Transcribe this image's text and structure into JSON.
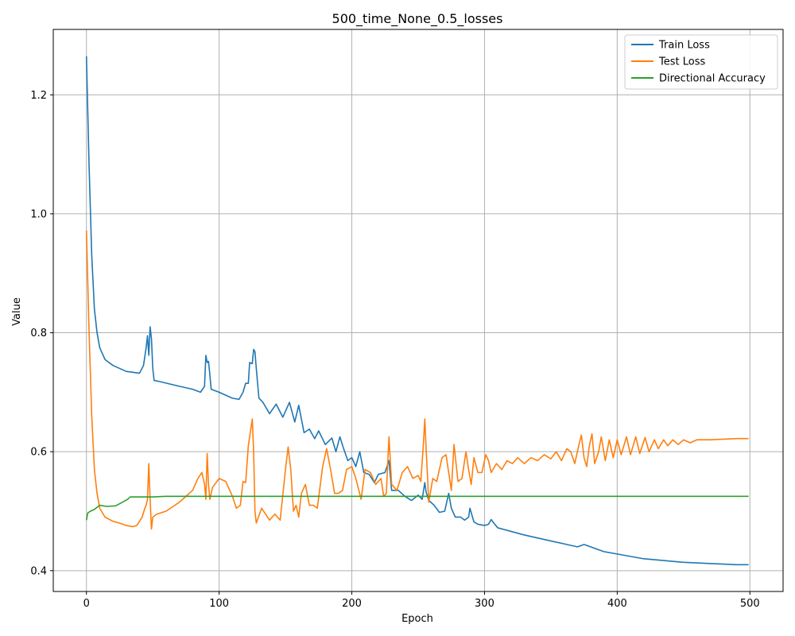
{
  "chart_data": {
    "type": "line",
    "title": "500_time_None_0.5_losses",
    "xlabel": "Epoch",
    "ylabel": "Value",
    "xlim": [
      -25,
      525
    ],
    "ylim": [
      0.365,
      1.31
    ],
    "xticks": [
      0,
      100,
      200,
      300,
      400,
      500
    ],
    "yticks": [
      0.4,
      0.6,
      0.8,
      1.0,
      1.2
    ],
    "xtick_labels": [
      "0",
      "100",
      "200",
      "300",
      "400",
      "500"
    ],
    "ytick_labels": [
      "0.4",
      "0.6",
      "0.8",
      "1.0",
      "1.2"
    ],
    "grid": true,
    "legend_position": "top-right",
    "series": [
      {
        "name": "Train Loss",
        "color": "#1f77b4",
        "points": [
          [
            0,
            1.265
          ],
          [
            2,
            1.08
          ],
          [
            4,
            0.93
          ],
          [
            6,
            0.84
          ],
          [
            8,
            0.8
          ],
          [
            10,
            0.775
          ],
          [
            14,
            0.755
          ],
          [
            20,
            0.745
          ],
          [
            30,
            0.735
          ],
          [
            40,
            0.732
          ],
          [
            43,
            0.745
          ],
          [
            45,
            0.775
          ],
          [
            46,
            0.795
          ],
          [
            47,
            0.762
          ],
          [
            48,
            0.81
          ],
          [
            49,
            0.79
          ],
          [
            50,
            0.74
          ],
          [
            51,
            0.72
          ],
          [
            55,
            0.718
          ],
          [
            70,
            0.71
          ],
          [
            80,
            0.705
          ],
          [
            86,
            0.7
          ],
          [
            89,
            0.71
          ],
          [
            90,
            0.762
          ],
          [
            91,
            0.75
          ],
          [
            92,
            0.752
          ],
          [
            93,
            0.73
          ],
          [
            94,
            0.705
          ],
          [
            100,
            0.7
          ],
          [
            110,
            0.69
          ],
          [
            115,
            0.688
          ],
          [
            118,
            0.7
          ],
          [
            120,
            0.715
          ],
          [
            122,
            0.715
          ],
          [
            123,
            0.75
          ],
          [
            125,
            0.748
          ],
          [
            126,
            0.772
          ],
          [
            127,
            0.768
          ],
          [
            128,
            0.74
          ],
          [
            130,
            0.69
          ],
          [
            133,
            0.683
          ],
          [
            138,
            0.664
          ],
          [
            143,
            0.68
          ],
          [
            148,
            0.658
          ],
          [
            153,
            0.683
          ],
          [
            157,
            0.65
          ],
          [
            160,
            0.678
          ],
          [
            164,
            0.632
          ],
          [
            168,
            0.638
          ],
          [
            172,
            0.622
          ],
          [
            175,
            0.635
          ],
          [
            180,
            0.612
          ],
          [
            185,
            0.623
          ],
          [
            188,
            0.6
          ],
          [
            191,
            0.625
          ],
          [
            194,
            0.604
          ],
          [
            197,
            0.585
          ],
          [
            200,
            0.59
          ],
          [
            203,
            0.575
          ],
          [
            206,
            0.6
          ],
          [
            209,
            0.565
          ],
          [
            213,
            0.562
          ],
          [
            217,
            0.548
          ],
          [
            220,
            0.562
          ],
          [
            225,
            0.565
          ],
          [
            228,
            0.585
          ],
          [
            230,
            0.535
          ],
          [
            235,
            0.535
          ],
          [
            240,
            0.525
          ],
          [
            245,
            0.518
          ],
          [
            250,
            0.527
          ],
          [
            253,
            0.52
          ],
          [
            255,
            0.548
          ],
          [
            256,
            0.532
          ],
          [
            258,
            0.518
          ],
          [
            262,
            0.51
          ],
          [
            266,
            0.498
          ],
          [
            270,
            0.5
          ],
          [
            273,
            0.53
          ],
          [
            275,
            0.505
          ],
          [
            278,
            0.49
          ],
          [
            282,
            0.49
          ],
          [
            285,
            0.485
          ],
          [
            288,
            0.49
          ],
          [
            289,
            0.505
          ],
          [
            292,
            0.482
          ],
          [
            295,
            0.478
          ],
          [
            300,
            0.476
          ],
          [
            303,
            0.478
          ],
          [
            305,
            0.486
          ],
          [
            307,
            0.48
          ],
          [
            310,
            0.472
          ],
          [
            320,
            0.466
          ],
          [
            330,
            0.46
          ],
          [
            340,
            0.455
          ],
          [
            350,
            0.45
          ],
          [
            360,
            0.445
          ],
          [
            370,
            0.44
          ],
          [
            375,
            0.444
          ],
          [
            380,
            0.44
          ],
          [
            385,
            0.436
          ],
          [
            390,
            0.432
          ],
          [
            400,
            0.428
          ],
          [
            410,
            0.424
          ],
          [
            420,
            0.42
          ],
          [
            430,
            0.418
          ],
          [
            440,
            0.416
          ],
          [
            450,
            0.414
          ],
          [
            460,
            0.413
          ],
          [
            470,
            0.412
          ],
          [
            480,
            0.411
          ],
          [
            490,
            0.41
          ],
          [
            499,
            0.41
          ]
        ]
      },
      {
        "name": "Test Loss",
        "color": "#ff7f0e",
        "points": [
          [
            0,
            0.972
          ],
          [
            2,
            0.8
          ],
          [
            4,
            0.66
          ],
          [
            6,
            0.57
          ],
          [
            8,
            0.53
          ],
          [
            10,
            0.505
          ],
          [
            14,
            0.49
          ],
          [
            20,
            0.483
          ],
          [
            25,
            0.48
          ],
          [
            30,
            0.476
          ],
          [
            35,
            0.474
          ],
          [
            38,
            0.476
          ],
          [
            42,
            0.49
          ],
          [
            44,
            0.505
          ],
          [
            45,
            0.51
          ],
          [
            46,
            0.52
          ],
          [
            47,
            0.58
          ],
          [
            48,
            0.52
          ],
          [
            49,
            0.47
          ],
          [
            50,
            0.49
          ],
          [
            53,
            0.495
          ],
          [
            60,
            0.5
          ],
          [
            70,
            0.515
          ],
          [
            80,
            0.535
          ],
          [
            84,
            0.555
          ],
          [
            87,
            0.565
          ],
          [
            89,
            0.545
          ],
          [
            90,
            0.52
          ],
          [
            91,
            0.597
          ],
          [
            92,
            0.545
          ],
          [
            93,
            0.52
          ],
          [
            95,
            0.54
          ],
          [
            100,
            0.555
          ],
          [
            105,
            0.55
          ],
          [
            110,
            0.525
          ],
          [
            113,
            0.505
          ],
          [
            116,
            0.51
          ],
          [
            118,
            0.55
          ],
          [
            120,
            0.548
          ],
          [
            122,
            0.61
          ],
          [
            124,
            0.64
          ],
          [
            125,
            0.655
          ],
          [
            126,
            0.6
          ],
          [
            127,
            0.5
          ],
          [
            128,
            0.48
          ],
          [
            132,
            0.505
          ],
          [
            135,
            0.495
          ],
          [
            138,
            0.485
          ],
          [
            142,
            0.495
          ],
          [
            146,
            0.485
          ],
          [
            150,
            0.57
          ],
          [
            152,
            0.608
          ],
          [
            154,
            0.57
          ],
          [
            156,
            0.5
          ],
          [
            158,
            0.51
          ],
          [
            160,
            0.49
          ],
          [
            162,
            0.53
          ],
          [
            165,
            0.545
          ],
          [
            168,
            0.51
          ],
          [
            171,
            0.51
          ],
          [
            174,
            0.505
          ],
          [
            178,
            0.575
          ],
          [
            181,
            0.605
          ],
          [
            184,
            0.57
          ],
          [
            187,
            0.53
          ],
          [
            190,
            0.53
          ],
          [
            193,
            0.535
          ],
          [
            196,
            0.57
          ],
          [
            200,
            0.575
          ],
          [
            203,
            0.555
          ],
          [
            207,
            0.52
          ],
          [
            210,
            0.57
          ],
          [
            214,
            0.565
          ],
          [
            218,
            0.545
          ],
          [
            222,
            0.555
          ],
          [
            224,
            0.525
          ],
          [
            226,
            0.53
          ],
          [
            228,
            0.625
          ],
          [
            230,
            0.545
          ],
          [
            234,
            0.535
          ],
          [
            238,
            0.565
          ],
          [
            242,
            0.575
          ],
          [
            246,
            0.555
          ],
          [
            250,
            0.56
          ],
          [
            252,
            0.55
          ],
          [
            254,
            0.615
          ],
          [
            255,
            0.655
          ],
          [
            256,
            0.605
          ],
          [
            258,
            0.515
          ],
          [
            261,
            0.555
          ],
          [
            264,
            0.55
          ],
          [
            268,
            0.59
          ],
          [
            271,
            0.595
          ],
          [
            274,
            0.55
          ],
          [
            275,
            0.535
          ],
          [
            277,
            0.612
          ],
          [
            280,
            0.55
          ],
          [
            283,
            0.555
          ],
          [
            286,
            0.6
          ],
          [
            288,
            0.57
          ],
          [
            290,
            0.545
          ],
          [
            292,
            0.59
          ],
          [
            295,
            0.565
          ],
          [
            298,
            0.565
          ],
          [
            301,
            0.595
          ],
          [
            303,
            0.585
          ],
          [
            305,
            0.565
          ],
          [
            309,
            0.58
          ],
          [
            313,
            0.57
          ],
          [
            317,
            0.585
          ],
          [
            321,
            0.58
          ],
          [
            325,
            0.59
          ],
          [
            330,
            0.58
          ],
          [
            335,
            0.59
          ],
          [
            340,
            0.585
          ],
          [
            345,
            0.595
          ],
          [
            350,
            0.588
          ],
          [
            354,
            0.6
          ],
          [
            358,
            0.585
          ],
          [
            362,
            0.605
          ],
          [
            365,
            0.6
          ],
          [
            368,
            0.58
          ],
          [
            371,
            0.61
          ],
          [
            373,
            0.628
          ],
          [
            375,
            0.59
          ],
          [
            377,
            0.575
          ],
          [
            379,
            0.61
          ],
          [
            381,
            0.63
          ],
          [
            383,
            0.58
          ],
          [
            386,
            0.6
          ],
          [
            388,
            0.625
          ],
          [
            391,
            0.585
          ],
          [
            394,
            0.62
          ],
          [
            397,
            0.59
          ],
          [
            400,
            0.62
          ],
          [
            403,
            0.595
          ],
          [
            407,
            0.625
          ],
          [
            410,
            0.595
          ],
          [
            414,
            0.625
          ],
          [
            417,
            0.597
          ],
          [
            421,
            0.624
          ],
          [
            424,
            0.6
          ],
          [
            428,
            0.62
          ],
          [
            431,
            0.605
          ],
          [
            435,
            0.62
          ],
          [
            438,
            0.61
          ],
          [
            442,
            0.62
          ],
          [
            446,
            0.612
          ],
          [
            450,
            0.62
          ],
          [
            455,
            0.615
          ],
          [
            460,
            0.62
          ],
          [
            470,
            0.62
          ],
          [
            480,
            0.621
          ],
          [
            490,
            0.622
          ],
          [
            499,
            0.622
          ]
        ]
      },
      {
        "name": "Directional Accuracy",
        "color": "#2ca02c",
        "points": [
          [
            0,
            0.485
          ],
          [
            1,
            0.497
          ],
          [
            3,
            0.5
          ],
          [
            6,
            0.503
          ],
          [
            10,
            0.51
          ],
          [
            15,
            0.508
          ],
          [
            22,
            0.509
          ],
          [
            27,
            0.515
          ],
          [
            31,
            0.52
          ],
          [
            33,
            0.524
          ],
          [
            40,
            0.524
          ],
          [
            50,
            0.524
          ],
          [
            60,
            0.525
          ],
          [
            100,
            0.525
          ],
          [
            200,
            0.525
          ],
          [
            300,
            0.525
          ],
          [
            400,
            0.525
          ],
          [
            499,
            0.525
          ]
        ]
      }
    ]
  }
}
